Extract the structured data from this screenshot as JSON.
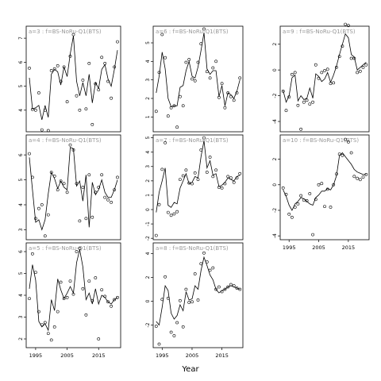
{
  "chart_data": {
    "type": "scatter",
    "xlabel": "Year",
    "xlim": [
      1992,
      2022
    ],
    "x_ticks": [
      "1995",
      "2005",
      "2015"
    ],
    "panels": [
      {
        "label": "a=3 : f=BS-NoRu-Q1(BTS)",
        "ylim": [
          3.1,
          7.5
        ],
        "y_ticks": [
          "4",
          "5",
          "6",
          "7"
        ],
        "years": [
          1993,
          1994,
          1995,
          1996,
          1997,
          1998,
          1999,
          2000,
          2001,
          2002,
          2003,
          2004,
          2005,
          2006,
          2007,
          2008,
          2009,
          2010,
          2011,
          2012,
          2013,
          2014,
          2015,
          2016,
          2017,
          2018,
          2019,
          2020,
          2021
        ],
        "points": [
          5.75,
          4.03,
          4.0,
          4.72,
          3.18,
          4.0,
          3.15,
          5.65,
          5.72,
          5.85,
          5.2,
          5.8,
          4.35,
          6.25,
          7.15,
          4.6,
          4.0,
          5.25,
          4.05,
          5.95,
          3.4,
          5.1,
          4.85,
          6.2,
          5.95,
          5.2,
          4.5,
          5.8,
          6.85
        ],
        "line": [
          5.35,
          4.05,
          4.1,
          4.2,
          3.6,
          4.2,
          3.7,
          5.5,
          5.7,
          5.6,
          5.05,
          5.8,
          5.4,
          6.35,
          7.1,
          5.2,
          4.6,
          5.15,
          4.6,
          5.5,
          4.3,
          5.15,
          4.9,
          5.7,
          5.9,
          5.3,
          5.0,
          5.7,
          6.5
        ]
      },
      {
        "label": "a=6 : f=BS-NoRu-Q1(BTS)",
        "ylim": [
          0.2,
          5.9
        ],
        "y_ticks": [
          "1",
          "2",
          "3",
          "4",
          "5"
        ],
        "years": [
          1993,
          1994,
          1995,
          1996,
          1997,
          1998,
          1999,
          2000,
          2001,
          2002,
          2003,
          2004,
          2005,
          2006,
          2007,
          2008,
          2009,
          2010,
          2011,
          2012,
          2013,
          2014,
          2015,
          2016,
          2017,
          2018,
          2019,
          2020,
          2021
        ],
        "points": [
          1.3,
          3.4,
          5.45,
          4.2,
          1.05,
          1.5,
          1.6,
          0.45,
          2.1,
          1.6,
          3.95,
          4.1,
          3.05,
          2.95,
          3.95,
          4.95,
          5.75,
          3.45,
          3.1,
          3.65,
          4.0,
          2.05,
          2.8,
          1.5,
          2.3,
          2.1,
          1.9,
          2.3,
          3.1
        ],
        "line": [
          2.3,
          3.2,
          4.5,
          3.6,
          2.0,
          1.55,
          1.6,
          1.6,
          2.6,
          2.7,
          3.5,
          4.0,
          3.2,
          3.1,
          3.7,
          4.6,
          5.55,
          3.6,
          3.3,
          3.5,
          3.5,
          2.1,
          2.7,
          1.6,
          2.3,
          2.2,
          2.0,
          2.4,
          3.0
        ]
      },
      {
        "label": "a=9 : f=BS-NoRu-Q1(BTS)",
        "ylim": [
          -4.8,
          3.4
        ],
        "y_ticks": [
          "-4",
          "-2",
          "0",
          "2"
        ],
        "years": [
          1993,
          1994,
          1995,
          1996,
          1997,
          1998,
          1999,
          2000,
          2001,
          2002,
          2003,
          2004,
          2005,
          2006,
          2007,
          2008,
          2009,
          2010,
          2011,
          2012,
          2013,
          2014,
          2015,
          2016,
          2017,
          2018,
          2019,
          2020,
          2021
        ],
        "points": [
          -1.65,
          -3.15,
          -2.1,
          -0.35,
          -0.2,
          -2.75,
          -4.6,
          -2.5,
          -2.35,
          -2.65,
          -2.5,
          0.4,
          -0.65,
          -0.2,
          -0.05,
          0.05,
          -1.05,
          -1.0,
          0.2,
          1.05,
          1.85,
          3.55,
          3.45,
          0.9,
          0.9,
          -0.2,
          -0.1,
          0.2,
          0.4
        ],
        "line": [
          -1.6,
          -2.5,
          -2.0,
          -0.6,
          -0.4,
          -2.4,
          -2.0,
          -2.3,
          -2.2,
          -1.4,
          -2.2,
          -0.3,
          -0.5,
          -0.9,
          -0.7,
          -0.2,
          -0.95,
          -0.4,
          0.3,
          1.2,
          2.0,
          2.8,
          2.5,
          1.2,
          1.0,
          0.0,
          0.2,
          0.4,
          0.6
        ]
      },
      {
        "label": "a=4 : f=BS-NoRu-Q1(BTS)",
        "ylim": [
          2.6,
          6.8
        ],
        "y_ticks": [
          "3",
          "4",
          "5",
          "6"
        ],
        "years": [
          1993,
          1994,
          1995,
          1996,
          1997,
          1998,
          1999,
          2000,
          2001,
          2002,
          2003,
          2004,
          2005,
          2006,
          2007,
          2008,
          2009,
          2010,
          2011,
          2012,
          2013,
          2014,
          2015,
          2016,
          2017,
          2018,
          2019,
          2020,
          2021
        ],
        "points": [
          6.05,
          5.1,
          3.45,
          3.85,
          4.0,
          2.75,
          3.6,
          5.3,
          5.15,
          4.6,
          4.95,
          4.85,
          4.5,
          6.4,
          6.2,
          4.85,
          3.35,
          4.7,
          3.45,
          5.2,
          3.5,
          4.5,
          4.7,
          5.2,
          4.3,
          4.2,
          4.1,
          4.6,
          5.1
        ],
        "line": [
          5.9,
          4.6,
          3.3,
          3.4,
          3.0,
          3.4,
          4.45,
          5.3,
          5.05,
          4.65,
          4.95,
          4.7,
          4.6,
          6.3,
          6.25,
          4.75,
          4.95,
          4.15,
          5.2,
          3.1,
          4.9,
          4.4,
          4.6,
          5.0,
          4.5,
          4.3,
          4.3,
          4.6,
          5.0
        ]
      },
      {
        "label": "a=7 : f=BS-NoRu-Q1(BTS)",
        "ylim": [
          -2.1,
          5.2
        ],
        "y_ticks": [
          "-2",
          "-1",
          "0",
          "1",
          "2",
          "3",
          "4",
          "5"
        ],
        "years": [
          1993,
          1994,
          1995,
          1996,
          1997,
          1998,
          1999,
          2000,
          2001,
          2002,
          2003,
          2004,
          2005,
          2006,
          2007,
          2008,
          2009,
          2010,
          2011,
          2012,
          2013,
          2014,
          2015,
          2016,
          2017,
          2018,
          2019,
          2020,
          2021
        ],
        "points": [
          -1.8,
          0.35,
          2.8,
          4.65,
          -0.2,
          -0.4,
          -0.3,
          -0.15,
          2.1,
          2.35,
          2.75,
          1.85,
          1.8,
          2.55,
          2.1,
          4.15,
          5.0,
          2.6,
          3.65,
          2.3,
          2.75,
          1.55,
          1.5,
          1.8,
          2.3,
          2.2,
          1.9,
          2.2,
          2.5
        ],
        "line": [
          -0.2,
          1.2,
          2.0,
          2.9,
          0.3,
          0.15,
          0.5,
          0.4,
          1.5,
          2.0,
          2.5,
          1.8,
          1.9,
          2.3,
          2.2,
          3.7,
          4.8,
          2.9,
          3.4,
          2.4,
          2.5,
          1.6,
          1.7,
          1.9,
          2.2,
          2.1,
          2.0,
          2.3,
          2.4
        ]
      },
      {
        "label": "a=10 : f=BS-NoRu-Q1(BTS)",
        "ylim": [
          -4.3,
          3.9
        ],
        "y_ticks": [
          "-4",
          "-2",
          "0",
          "2"
        ],
        "years": [
          1993,
          1994,
          1995,
          1996,
          1997,
          1998,
          1999,
          2000,
          2001,
          2002,
          2003,
          2004,
          2005,
          2006,
          2007,
          2008,
          2009,
          2010,
          2011,
          2012,
          2013,
          2014,
          2015,
          2016,
          2017,
          2018,
          2019,
          2020,
          2021
        ],
        "points": [
          -0.25,
          -0.75,
          -2.3,
          -2.55,
          -1.75,
          -1.5,
          -0.85,
          -1.2,
          -1.25,
          -0.7,
          -3.9,
          -1.15,
          0.0,
          0.1,
          -1.7,
          -0.35,
          -1.75,
          0.0,
          0.85,
          2.4,
          2.3,
          3.55,
          3.35,
          2.5,
          0.65,
          0.5,
          0.4,
          0.6,
          0.8
        ],
        "line": [
          -0.4,
          -0.9,
          -1.6,
          -2.0,
          -1.5,
          -1.3,
          -1.0,
          -1.1,
          -1.3,
          -1.5,
          -1.6,
          -1.0,
          -0.8,
          -0.5,
          -0.5,
          -0.3,
          -0.4,
          0.0,
          0.7,
          2.3,
          2.5,
          2.2,
          1.9,
          1.6,
          1.2,
          1.0,
          0.9,
          0.8,
          0.8
        ]
      },
      {
        "label": "a=5 : f=BS-NoRu-Q1(BTS)",
        "ylim": [
          1.6,
          6.4
        ],
        "y_ticks": [
          "2",
          "3",
          "4",
          "5",
          "6"
        ],
        "years": [
          1993,
          1994,
          1995,
          1996,
          1997,
          1998,
          1999,
          2000,
          2001,
          2002,
          2003,
          2004,
          2005,
          2006,
          2007,
          2008,
          2009,
          2010,
          2011,
          2012,
          2013,
          2014,
          2015,
          2016,
          2017,
          2018,
          2019,
          2020,
          2021
        ],
        "points": [
          3.85,
          5.9,
          5.05,
          3.25,
          2.65,
          2.75,
          2.25,
          1.95,
          2.55,
          3.25,
          4.6,
          3.85,
          3.9,
          4.65,
          4.05,
          6.0,
          6.15,
          4.3,
          3.1,
          4.65,
          3.75,
          4.8,
          2.0,
          4.25,
          3.95,
          3.7,
          3.5,
          3.8,
          3.9
        ],
        "line": [
          4.3,
          5.4,
          4.7,
          2.8,
          2.55,
          2.7,
          2.4,
          3.8,
          3.3,
          4.75,
          4.25,
          3.85,
          4.1,
          4.4,
          4.1,
          5.5,
          6.1,
          5.3,
          3.8,
          4.1,
          3.6,
          4.3,
          3.6,
          4.0,
          3.9,
          3.7,
          3.6,
          3.8,
          3.9
        ]
      },
      {
        "label": "a=8 : f=BS-NoRu-Q1(BTS)",
        "ylim": [
          -3.9,
          4.9
        ],
        "y_ticks": [
          "-2",
          "0",
          "2",
          "4"
        ],
        "years": [
          1993,
          1994,
          1995,
          1996,
          1997,
          1998,
          1999,
          2000,
          2001,
          2002,
          2003,
          2004,
          2005,
          2006,
          2007,
          2008,
          2009,
          2010,
          2011,
          2012,
          2013,
          2014,
          2015,
          2016,
          2017,
          2018,
          2019,
          2020,
          2021
        ],
        "points": [
          -2.1,
          -3.6,
          0.15,
          2.05,
          0.25,
          -2.6,
          -2.9,
          -1.8,
          0.05,
          -2.15,
          1.0,
          -0.1,
          -0.05,
          2.3,
          0.1,
          3.15,
          4.05,
          3.3,
          2.6,
          2.8,
          1.0,
          1.2,
          0.8,
          1.0,
          1.2,
          1.4,
          1.3,
          1.1,
          1.0
        ],
        "line": [
          -1.7,
          -2.0,
          -0.5,
          1.3,
          0.9,
          -1.0,
          -1.5,
          -1.2,
          -0.3,
          -0.8,
          0.8,
          0.1,
          0.2,
          1.3,
          1.0,
          2.6,
          3.7,
          3.0,
          2.2,
          1.8,
          1.0,
          0.7,
          0.9,
          1.0,
          1.2,
          1.3,
          1.2,
          1.1,
          1.0
        ]
      }
    ]
  }
}
